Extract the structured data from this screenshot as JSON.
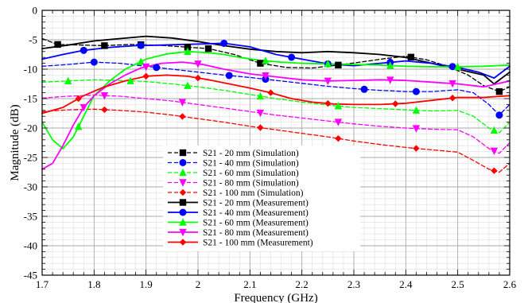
{
  "chart_data": {
    "type": "line",
    "title": "",
    "xlabel": "Frequency (GHz)",
    "ylabel": "Magnitude (dB)",
    "xlim": [
      1.7,
      2.6
    ],
    "ylim": [
      -45,
      0
    ],
    "x_major_ticks": [
      "1.7",
      "1.8",
      "1.9",
      "2",
      "2.1",
      "2.2",
      "2.3",
      "2.4",
      "2.5",
      "2.6"
    ],
    "y_major_ticks": [
      "0",
      "-5",
      "-10",
      "-15",
      "-20",
      "-25",
      "-30",
      "-35",
      "-40",
      "-45"
    ],
    "grid": true,
    "legend_position": "bottom-left",
    "series": [
      {
        "name": "S21 - 20 mm (Simulation)",
        "color": "#000000",
        "dash": "dashed",
        "marker": "square",
        "x": [
          1.7,
          1.73,
          1.78,
          1.82,
          1.87,
          1.92,
          1.97,
          2.02,
          2.07,
          2.12,
          2.17,
          2.22,
          2.27,
          2.32,
          2.36,
          2.4,
          2.44,
          2.48,
          2.52,
          2.55,
          2.58,
          2.6
        ],
        "y": [
          -4.8,
          -5.8,
          -5.9,
          -6.0,
          -5.8,
          -5.9,
          -6.2,
          -6.5,
          -7.5,
          -9.0,
          -9.7,
          -9.8,
          -9.3,
          -8.7,
          -8.2,
          -7.8,
          -8.4,
          -9.5,
          -11.0,
          -12.8,
          -13.8,
          -13.0
        ],
        "marker_x": [
          1.73,
          1.82,
          1.89,
          1.98,
          2.02,
          2.12,
          2.27,
          2.41,
          2.58
        ]
      },
      {
        "name": "S21 - 40 mm (Simulation)",
        "color": "#0000ff",
        "dash": "dashed",
        "marker": "circle",
        "x": [
          1.7,
          1.75,
          1.8,
          1.85,
          1.9,
          1.95,
          2.0,
          2.05,
          2.1,
          2.15,
          2.2,
          2.25,
          2.3,
          2.35,
          2.4,
          2.45,
          2.5,
          2.53,
          2.56,
          2.58,
          2.6
        ],
        "y": [
          -9.5,
          -9.2,
          -8.8,
          -9.0,
          -9.5,
          -10.0,
          -10.5,
          -11.0,
          -11.4,
          -11.9,
          -12.4,
          -12.9,
          -13.3,
          -13.6,
          -13.8,
          -13.8,
          -13.5,
          -14.0,
          -16.0,
          -17.8,
          -16.0
        ],
        "marker_x": [
          1.8,
          1.92,
          2.06,
          2.13,
          2.32,
          2.42,
          2.58
        ]
      },
      {
        "name": "S21 - 60 mm (Simulation)",
        "color": "#00ff00",
        "dash": "dashed",
        "marker": "triangle-up",
        "x": [
          1.7,
          1.75,
          1.8,
          1.85,
          1.9,
          1.95,
          2.0,
          2.05,
          2.1,
          2.15,
          2.2,
          2.25,
          2.3,
          2.35,
          2.4,
          2.45,
          2.5,
          2.53,
          2.56,
          2.58,
          2.6
        ],
        "y": [
          -12.2,
          -12.0,
          -11.8,
          -11.9,
          -12.1,
          -12.5,
          -13.0,
          -13.6,
          -14.3,
          -15.0,
          -15.6,
          -16.1,
          -16.5,
          -16.7,
          -16.9,
          -17.1,
          -17.0,
          -18.0,
          -20.0,
          -20.8,
          -19.0
        ],
        "marker_x": [
          1.75,
          1.87,
          1.98,
          2.12,
          2.27,
          2.42,
          2.57
        ]
      },
      {
        "name": "S21 - 80 mm (Simulation)",
        "color": "#ff00ff",
        "dash": "dashed",
        "marker": "triangle-down",
        "x": [
          1.7,
          1.75,
          1.8,
          1.85,
          1.9,
          1.95,
          2.0,
          2.05,
          2.1,
          2.15,
          2.2,
          2.25,
          2.3,
          2.35,
          2.4,
          2.45,
          2.5,
          2.53,
          2.56,
          2.58,
          2.6
        ],
        "y": [
          -14.9,
          -14.6,
          -14.4,
          -14.6,
          -15.0,
          -15.4,
          -16.0,
          -16.6,
          -17.2,
          -17.8,
          -18.3,
          -18.8,
          -19.3,
          -19.7,
          -20.0,
          -20.2,
          -20.3,
          -21.5,
          -23.5,
          -24.3,
          -22.5
        ],
        "marker_x": [
          1.82,
          1.97,
          2.12,
          2.27,
          2.42,
          2.57
        ]
      },
      {
        "name": "S21 - 100 mm (Simulation)",
        "color": "#ff0000",
        "dash": "dashed",
        "marker": "diamond",
        "x": [
          1.7,
          1.75,
          1.8,
          1.85,
          1.9,
          1.95,
          2.0,
          2.05,
          2.1,
          2.15,
          2.2,
          2.25,
          2.3,
          2.35,
          2.4,
          2.45,
          2.5,
          2.53,
          2.56,
          2.58,
          2.6
        ],
        "y": [
          -17.2,
          -16.9,
          -16.8,
          -17.0,
          -17.3,
          -17.8,
          -18.4,
          -19.0,
          -19.7,
          -20.3,
          -20.9,
          -21.5,
          -22.2,
          -22.8,
          -23.3,
          -23.7,
          -24.1,
          -25.5,
          -27.0,
          -27.5,
          -26.0
        ],
        "marker_x": [
          1.82,
          1.97,
          2.12,
          2.27,
          2.42,
          2.57
        ]
      },
      {
        "name": "S21 - 20 mm (Measurement)",
        "color": "#000000",
        "dash": "solid",
        "marker": "square",
        "x": [
          1.7,
          1.75,
          1.8,
          1.85,
          1.9,
          1.95,
          2.0,
          2.05,
          2.1,
          2.15,
          2.2,
          2.25,
          2.3,
          2.35,
          2.4,
          2.45,
          2.5,
          2.55,
          2.57,
          2.6
        ],
        "y": [
          -6.5,
          -5.9,
          -5.2,
          -4.8,
          -4.4,
          -4.7,
          -5.3,
          -6.0,
          -6.6,
          -7.0,
          -7.2,
          -7.0,
          -7.2,
          -7.5,
          -8.0,
          -9.0,
          -10.0,
          -11.0,
          -12.5,
          -10.5
        ],
        "marker_x": []
      },
      {
        "name": "S21 - 40 mm (Measurement)",
        "color": "#0000ff",
        "dash": "solid",
        "marker": "circle",
        "x": [
          1.7,
          1.74,
          1.78,
          1.83,
          1.88,
          1.93,
          1.97,
          2.01,
          2.05,
          2.1,
          2.15,
          2.2,
          2.25,
          2.3,
          2.35,
          2.4,
          2.45,
          2.5,
          2.54,
          2.57,
          2.6
        ],
        "y": [
          -8.3,
          -7.5,
          -6.8,
          -6.3,
          -6.0,
          -5.9,
          -5.8,
          -5.7,
          -5.6,
          -6.2,
          -7.5,
          -8.3,
          -9.1,
          -9.4,
          -9.0,
          -8.6,
          -9.0,
          -9.7,
          -10.5,
          -11.5,
          -9.5
        ],
        "marker_x": [
          1.78,
          1.89,
          2.05,
          2.18,
          2.25,
          2.37,
          2.49
        ]
      },
      {
        "name": "S21 - 60 mm (Measurement)",
        "color": "#00ff00",
        "dash": "solid",
        "marker": "triangle-up",
        "x": [
          1.7,
          1.72,
          1.74,
          1.76,
          1.78,
          1.8,
          1.83,
          1.86,
          1.9,
          1.94,
          1.98,
          2.02,
          2.05,
          2.08,
          2.12,
          2.16,
          2.2,
          2.25,
          2.3,
          2.35,
          2.4,
          2.45,
          2.5,
          2.55,
          2.6
        ],
        "y": [
          -19.0,
          -22.0,
          -23.5,
          -21.5,
          -18.0,
          -14.5,
          -12.0,
          -10.0,
          -8.3,
          -7.4,
          -7.0,
          -7.2,
          -7.5,
          -8.0,
          -8.5,
          -8.8,
          -9.0,
          -9.1,
          -9.2,
          -9.3,
          -9.5,
          -9.6,
          -9.6,
          -9.5,
          -9.3
        ],
        "marker_x": [
          1.77,
          1.89,
          1.98,
          2.13,
          2.25,
          2.37,
          2.5
        ]
      },
      {
        "name": "S21 - 80 mm (Measurement)",
        "color": "#ff00ff",
        "dash": "solid",
        "marker": "triangle-down",
        "x": [
          1.7,
          1.72,
          1.74,
          1.76,
          1.78,
          1.8,
          1.83,
          1.86,
          1.89,
          1.93,
          1.97,
          2.01,
          2.05,
          2.1,
          2.15,
          2.2,
          2.25,
          2.3,
          2.35,
          2.4,
          2.45,
          2.5,
          2.55,
          2.6
        ],
        "y": [
          -27.0,
          -26.0,
          -23.0,
          -19.5,
          -16.5,
          -14.5,
          -12.5,
          -11.0,
          -9.8,
          -9.0,
          -8.8,
          -9.2,
          -10.0,
          -10.8,
          -11.3,
          -11.8,
          -12.0,
          -11.9,
          -11.8,
          -11.9,
          -12.2,
          -12.5,
          -13.0,
          -12.0
        ],
        "marker_x": [
          1.78,
          1.9,
          2.0,
          2.13,
          2.25,
          2.37,
          2.49
        ]
      },
      {
        "name": "S21 - 100 mm (Measurement)",
        "color": "#ff0000",
        "dash": "solid",
        "marker": "diamond",
        "x": [
          1.7,
          1.74,
          1.78,
          1.82,
          1.86,
          1.9,
          1.94,
          1.98,
          2.02,
          2.06,
          2.1,
          2.14,
          2.18,
          2.22,
          2.26,
          2.3,
          2.35,
          2.4,
          2.45,
          2.5,
          2.55,
          2.6
        ],
        "y": [
          -17.5,
          -16.5,
          -14.5,
          -13.0,
          -12.0,
          -11.2,
          -11.0,
          -11.2,
          -11.8,
          -12.5,
          -13.2,
          -14.0,
          -15.0,
          -15.6,
          -15.9,
          -16.0,
          -16.0,
          -15.8,
          -15.3,
          -14.8,
          -14.8,
          -14.5
        ],
        "marker_x": [
          1.77,
          1.9,
          2.0,
          2.14,
          2.25,
          2.38,
          2.49
        ]
      }
    ]
  }
}
